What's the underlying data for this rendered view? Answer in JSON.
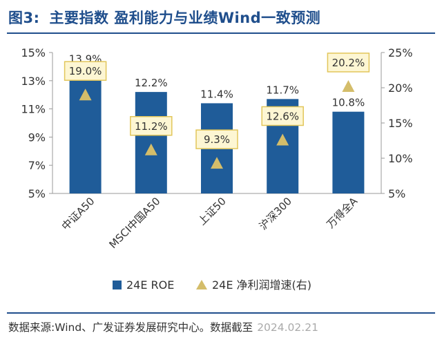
{
  "header": {
    "figure_label": "图3:",
    "title": "主要指数 盈利能力与业绩Wind一致预测"
  },
  "footer": {
    "source": "数据来源:Wind、广发证券发展研究中心。数据截至",
    "watermark": "2024.02.21"
  },
  "colors": {
    "bar": "#1f5c99",
    "marker": "#d4bd6a",
    "label_box_fill": "#fdf6d3",
    "label_box_border": "#e2c65a",
    "title": "#1f4e8c"
  },
  "chart_data": {
    "type": "bar",
    "categories": [
      "中证A50",
      "MSCI中国A50",
      "上证50",
      "沪深300",
      "万得全A"
    ],
    "series": [
      {
        "name": "24E ROE",
        "type": "bar",
        "axis": "left",
        "values": [
          13.9,
          12.2,
          11.4,
          11.7,
          10.8
        ],
        "labels": [
          "13.9%",
          "12.2%",
          "11.4%",
          "11.7%",
          "10.8%"
        ]
      },
      {
        "name": "24E 净利润增速(右)",
        "type": "marker-triangle",
        "axis": "right",
        "values": [
          19.0,
          11.2,
          9.3,
          12.6,
          20.2
        ],
        "labels": [
          "19.0%",
          "11.2%",
          "9.3%",
          "12.6%",
          "20.2%"
        ]
      }
    ],
    "y_left": {
      "min": 5,
      "max": 15,
      "ticks": [
        "5%",
        "7%",
        "9%",
        "11%",
        "13%",
        "15%"
      ]
    },
    "y_right": {
      "min": 5,
      "max": 25,
      "ticks": [
        "5%",
        "10%",
        "15%",
        "20%",
        "25%"
      ]
    },
    "grid": false,
    "legend_position": "bottom"
  }
}
